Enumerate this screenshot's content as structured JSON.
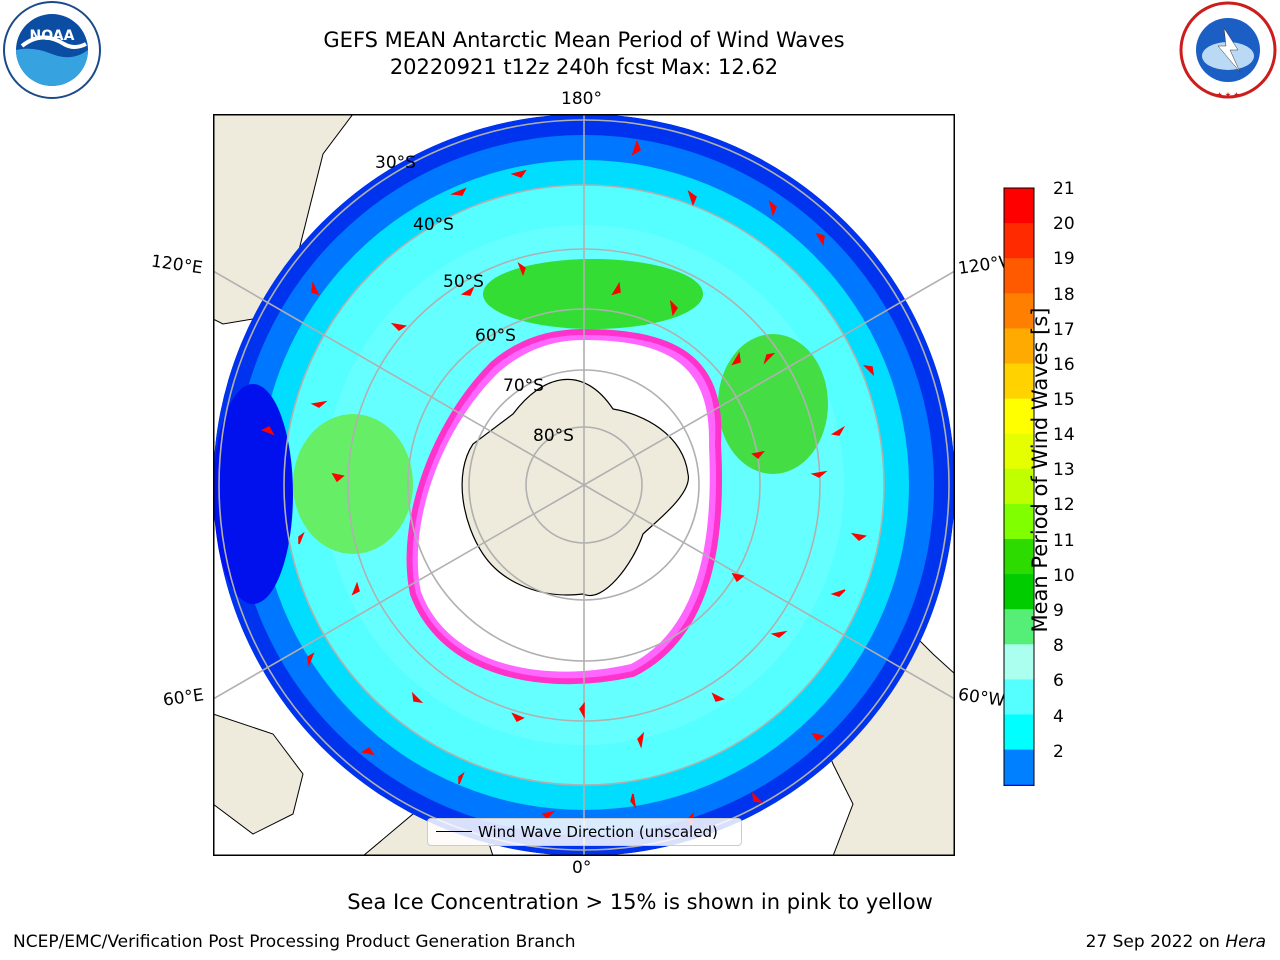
{
  "title_line1": "GEFS MEAN Antarctic Mean Period of Wind Waves",
  "title_line2": "20220921 t12z 240h fcst   Max: 12.62",
  "longitude_labels": {
    "top": "180°",
    "bottom": "0°",
    "left_upper": "120°E",
    "left_lower": "60°E",
    "right_upper": "120°W",
    "right_lower": "60°W"
  },
  "latitude_labels": [
    "30°S",
    "40°S",
    "50°S",
    "60°S",
    "70°S",
    "80°S"
  ],
  "colorbar": {
    "label": "Mean Period of Wind Waves [s]",
    "ticks": [
      "21",
      "20",
      "19",
      "18",
      "17",
      "16",
      "15",
      "14",
      "13",
      "12",
      "11",
      "10",
      "9",
      "8",
      "6",
      "4",
      "2"
    ],
    "colors": [
      "#ff0000",
      "#ff2a00",
      "#ff5a00",
      "#ff8000",
      "#ffaa00",
      "#ffd200",
      "#ffff00",
      "#e6ff00",
      "#bfff00",
      "#80ff00",
      "#2edb00",
      "#00cc00",
      "#55ee77",
      "#aaffee",
      "#55ffff",
      "#00ffff",
      "#007fff",
      "#0000ff"
    ]
  },
  "legend": "Wind Wave Direction (unscaled)",
  "subtitle": "Sea Ice Concentration > 15% is shown in pink to yellow",
  "footer_left": "NCEP/EMC/Verification Post Processing Product Generation Branch",
  "footer_right_date": "27 Sep 2022 on ",
  "footer_right_host": "Hera",
  "logos": {
    "noaa": "NOAA",
    "nws": "NATIONAL WEATHER SERVICE"
  }
}
